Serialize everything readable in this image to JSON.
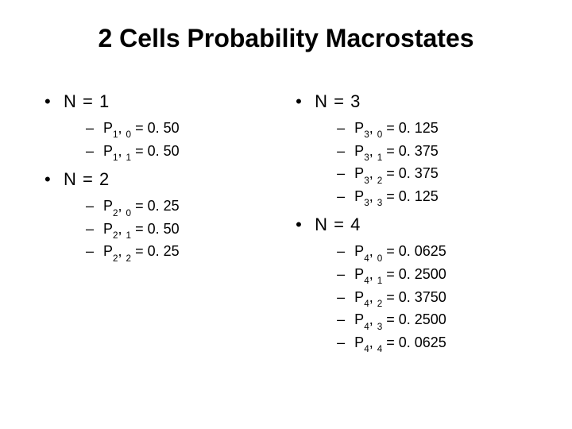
{
  "title": "2 Cells Probability Macrostates",
  "bullet": "•",
  "dash": "–",
  "leftGroups": [
    {
      "heading": "N = 1",
      "items": [
        {
          "sub1": "1",
          "sub2": "0",
          "eq": " = 0. 50"
        },
        {
          "sub1": "1",
          "sub2": "1",
          "eq": " = 0. 50"
        }
      ]
    },
    {
      "heading": "N = 2",
      "items": [
        {
          "sub1": "2",
          "sub2": "0",
          "eq": " = 0. 25"
        },
        {
          "sub1": "2",
          "sub2": "1",
          "eq": " = 0. 50"
        },
        {
          "sub1": "2",
          "sub2": "2",
          "eq": " = 0. 25"
        }
      ]
    }
  ],
  "rightGroups": [
    {
      "heading": "N = 3",
      "items": [
        {
          "sub1": "3",
          "sub2": "0",
          "eq": " = 0. 125"
        },
        {
          "sub1": "3",
          "sub2": "1",
          "eq": " = 0. 375"
        },
        {
          "sub1": "3",
          "sub2": "2",
          "eq": " = 0. 375"
        },
        {
          "sub1": "3",
          "sub2": "3",
          "eq": " = 0. 125"
        }
      ]
    },
    {
      "heading": "N = 4",
      "items": [
        {
          "sub1": "4",
          "sub2": "0",
          "eq": " = 0. 0625"
        },
        {
          "sub1": "4",
          "sub2": "1",
          "eq": " = 0. 2500"
        },
        {
          "sub1": "4",
          "sub2": "2",
          "eq": " = 0. 3750"
        },
        {
          "sub1": "4",
          "sub2": "3",
          "eq": " = 0. 2500"
        },
        {
          "sub1": "4",
          "sub2": "4",
          "eq": " = 0. 0625"
        }
      ]
    }
  ]
}
